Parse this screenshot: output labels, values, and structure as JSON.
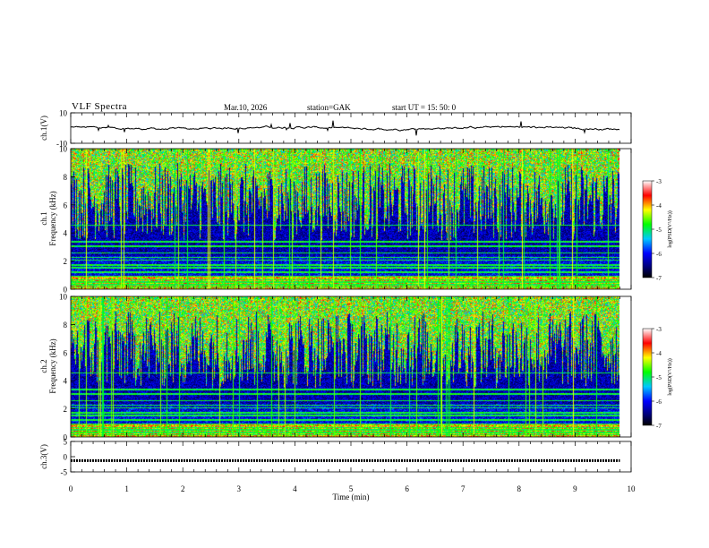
{
  "header": {
    "title": "VLF Spectra",
    "date": "Mar.10, 2026",
    "station": "station=GAK",
    "start": "start  UT  =   15: 50: 0"
  },
  "chart_data": {
    "type": "heatmap",
    "title": "VLF Spectra",
    "xlabel": "Time (min)",
    "xlim": [
      0,
      10
    ],
    "x_ticks": [
      "0",
      "1",
      "2",
      "3",
      "4",
      "5",
      "6",
      "7",
      "8",
      "9",
      "10"
    ],
    "panels": [
      {
        "name": "ch1-waveform",
        "ylabel": "ch.1(V)",
        "ylim": [
          -10,
          10
        ],
        "y_ticks": [
          "10",
          "-10"
        ],
        "type": "line"
      },
      {
        "name": "ch1-spectrogram",
        "ylabel": "ch.1 Frequency (kHz)",
        "ylim": [
          0,
          10
        ],
        "y_ticks": [
          "0",
          "2",
          "4",
          "6",
          "8",
          "10"
        ],
        "type": "heatmap"
      },
      {
        "name": "ch2-spectrogram",
        "ylabel": "ch.2 Frequency (kHz)",
        "ylim": [
          0,
          10
        ],
        "y_ticks": [
          "0",
          "2",
          "4",
          "6",
          "8",
          "10"
        ],
        "type": "heatmap"
      },
      {
        "name": "ch3-waveform",
        "ylabel": "ch.3(V)",
        "ylim": [
          -5,
          5
        ],
        "y_ticks": [
          "5",
          "0",
          "-5"
        ],
        "type": "line"
      }
    ],
    "colorbar": {
      "label": "log(PSD(V²/Hz))",
      "range": [
        -7,
        -3
      ],
      "ticks": [
        "-3",
        "-4",
        "-5",
        "-6",
        "-7"
      ]
    },
    "colors": {
      "low": "#000000",
      "mid": "#00c8ff",
      "high": "#ff0000",
      "top": "#ffffff"
    }
  }
}
